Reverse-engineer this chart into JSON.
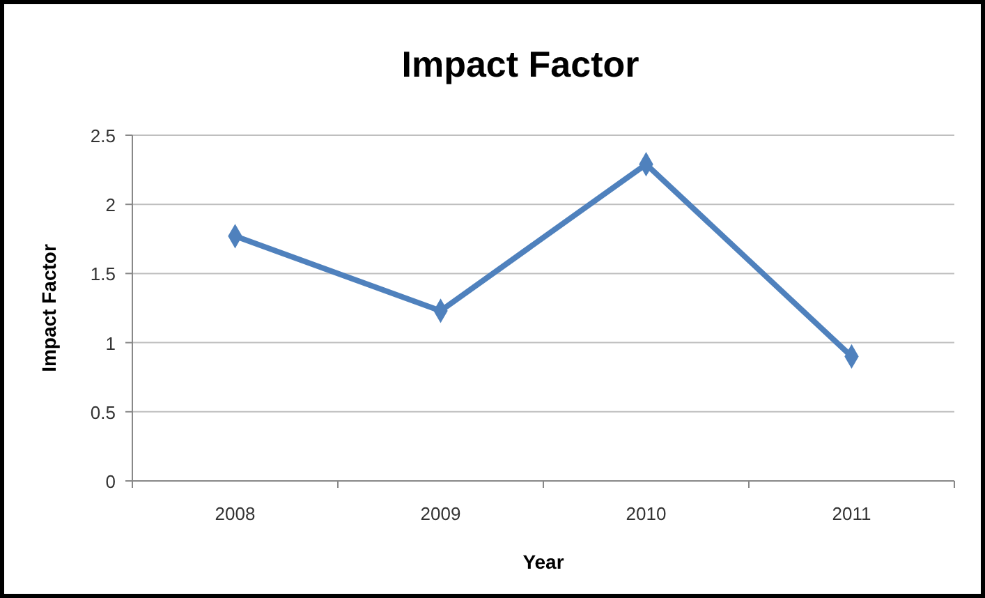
{
  "chart_data": {
    "type": "line",
    "title": "Impact Factor",
    "xlabel": "Year",
    "ylabel": "Impact Factor",
    "categories": [
      "2008",
      "2009",
      "2010",
      "2011"
    ],
    "series": [
      {
        "color": "#4f81bd",
        "values": [
          1.77,
          1.23,
          2.29,
          0.9
        ]
      }
    ],
    "ylim": [
      0,
      2.5
    ],
    "yticks": [
      0,
      0.5,
      1,
      1.5,
      2,
      2.5
    ],
    "grid": "y",
    "marker": "diamond",
    "line_style": "solid"
  }
}
